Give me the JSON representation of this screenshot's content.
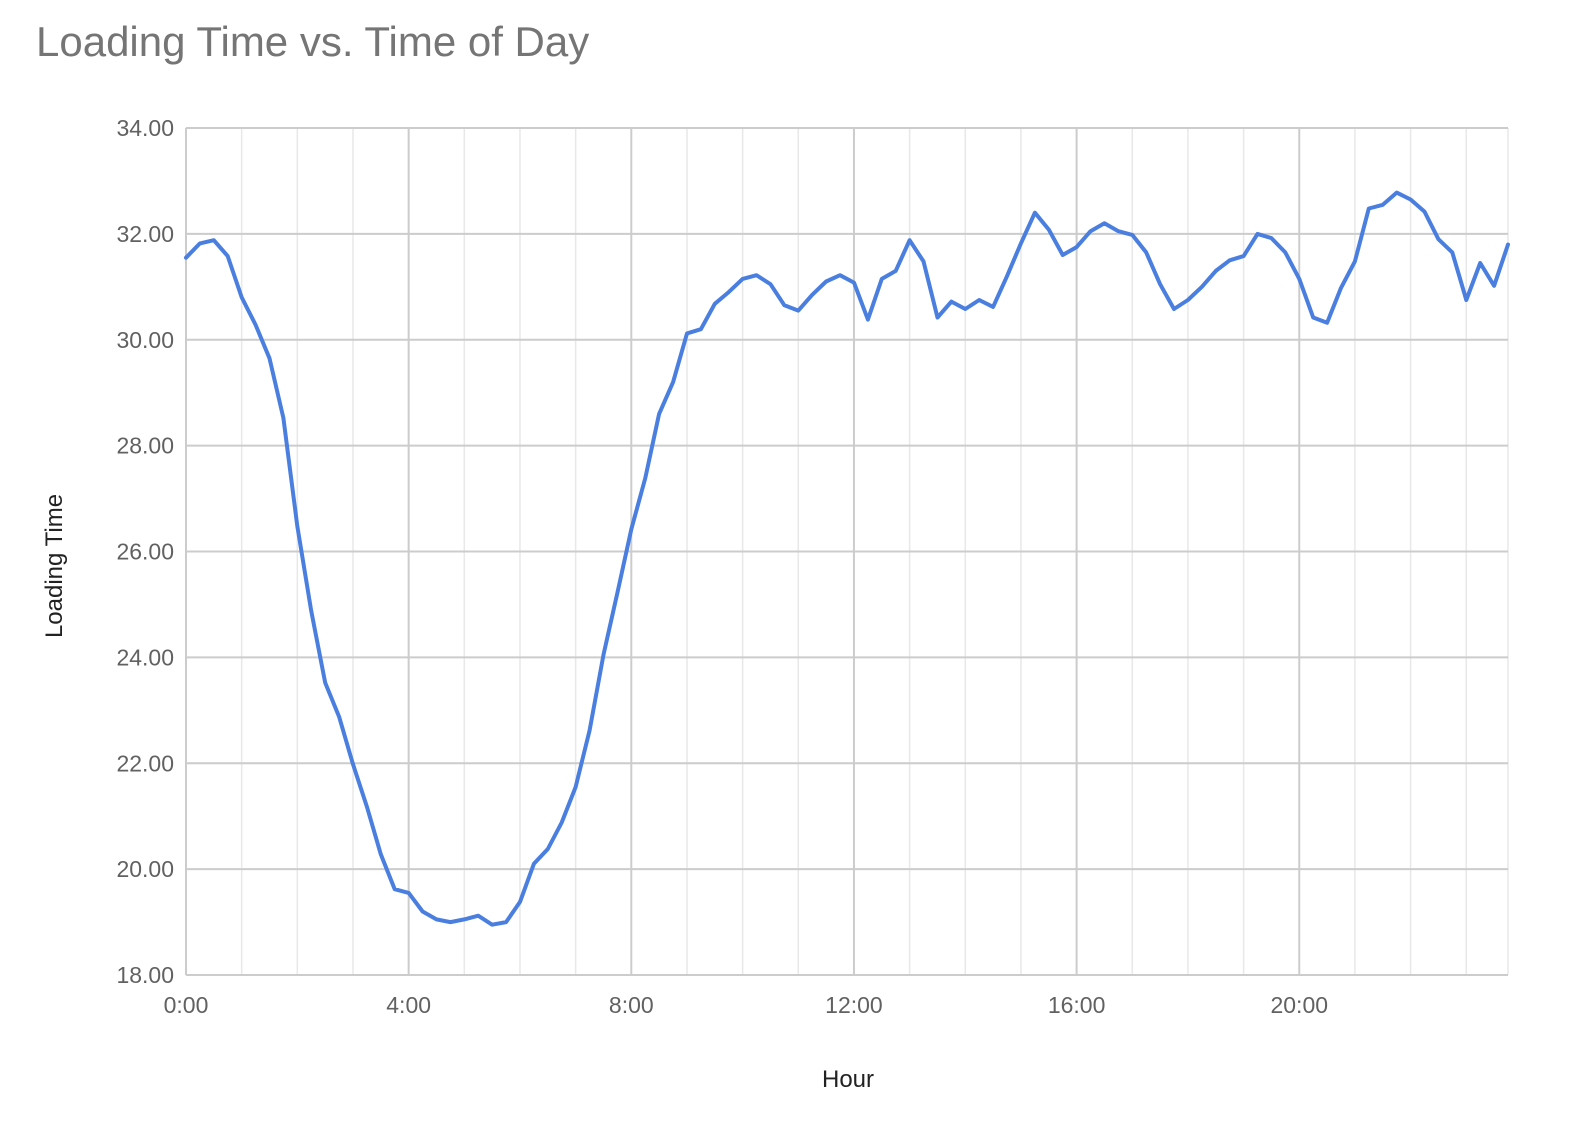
{
  "chart_data": {
    "type": "line",
    "title": "Loading Time vs. Time of Day",
    "xlabel": "Hour",
    "ylabel": "Loading Time",
    "x_unit": "hours",
    "xlim": [
      0,
      23.75
    ],
    "ylim": [
      18,
      34
    ],
    "x_ticks": [
      {
        "value": 0,
        "label": "0:00"
      },
      {
        "value": 4,
        "label": "4:00"
      },
      {
        "value": 8,
        "label": "8:00"
      },
      {
        "value": 12,
        "label": "12:00"
      },
      {
        "value": 16,
        "label": "16:00"
      },
      {
        "value": 20,
        "label": "20:00"
      }
    ],
    "y_ticks": [
      {
        "value": 18,
        "label": "18.00"
      },
      {
        "value": 20,
        "label": "20.00"
      },
      {
        "value": 22,
        "label": "22.00"
      },
      {
        "value": 24,
        "label": "24.00"
      },
      {
        "value": 26,
        "label": "26.00"
      },
      {
        "value": 28,
        "label": "28.00"
      },
      {
        "value": 30,
        "label": "30.00"
      },
      {
        "value": 32,
        "label": "32.00"
      },
      {
        "value": 34,
        "label": "34.00"
      }
    ],
    "grid": true,
    "legend": "none",
    "colors": {
      "line": "#4a7fe0",
      "major_grid": "#cccccc",
      "minor_grid": "#e8e8e8",
      "title": "#757575",
      "tick_label": "#616161",
      "axis_title": "#222222"
    },
    "series": [
      {
        "x": [
          0,
          0.25,
          0.5,
          0.75,
          1,
          1.25,
          1.5,
          1.75,
          2,
          2.25,
          2.5,
          2.75,
          3,
          3.25,
          3.5,
          3.75,
          4,
          4.25,
          4.5,
          4.75,
          5,
          5.25,
          5.5,
          5.75,
          6,
          6.25,
          6.5,
          6.75,
          7,
          7.25,
          7.5,
          7.75,
          8,
          8.25,
          8.5,
          8.75,
          9,
          9.25,
          9.5,
          9.75,
          10,
          10.25,
          10.5,
          10.75,
          11,
          11.25,
          11.5,
          11.75,
          12,
          12.25,
          12.5,
          12.75,
          13,
          13.25,
          13.5,
          13.75,
          14,
          14.25,
          14.5,
          14.75,
          15,
          15.25,
          15.5,
          15.75,
          16,
          16.25,
          16.5,
          16.75,
          17,
          17.25,
          17.5,
          17.75,
          18,
          18.25,
          18.5,
          18.75,
          19,
          19.25,
          19.5,
          19.75,
          20,
          20.25,
          20.5,
          20.75,
          21,
          21.25,
          21.5,
          21.75,
          22,
          22.25,
          22.5,
          22.75,
          23,
          23.25,
          23.5,
          23.75
        ],
        "values": [
          31.55,
          31.82,
          31.88,
          31.58,
          30.8,
          30.28,
          29.65,
          28.52,
          26.48,
          24.88,
          23.52,
          22.88,
          21.98,
          21.18,
          20.28,
          19.62,
          19.55,
          19.2,
          19.05,
          19.0,
          19.05,
          19.12,
          18.95,
          19.0,
          19.38,
          20.1,
          20.38,
          20.88,
          21.55,
          22.62,
          24.05,
          25.22,
          26.42,
          27.38,
          28.6,
          29.2,
          30.12,
          30.2,
          30.68,
          30.9,
          31.15,
          31.22,
          31.05,
          30.65,
          30.55,
          30.85,
          31.1,
          31.22,
          31.08,
          30.38,
          31.15,
          31.3,
          31.88,
          31.48,
          30.42,
          30.72,
          30.58,
          30.75,
          30.62,
          31.2,
          31.82,
          32.4,
          32.08,
          31.6,
          31.75,
          32.05,
          32.2,
          32.05,
          31.98,
          31.65,
          31.05,
          30.58,
          30.75,
          31.0,
          31.3,
          31.5,
          31.58,
          32.0,
          31.92,
          31.65,
          31.15,
          30.42,
          30.32,
          30.98,
          31.48,
          32.48,
          32.55,
          32.78,
          32.65,
          32.42,
          31.9,
          31.65,
          30.75,
          31.45,
          31.02,
          31.8
        ]
      }
    ]
  }
}
